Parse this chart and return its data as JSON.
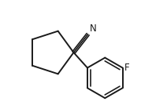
{
  "bg_color": "#ffffff",
  "line_color": "#1a1a1a",
  "line_width": 1.4,
  "font_size_label": 8.5,
  "N_label": "N",
  "F_label": "F",
  "figsize": [
    2.12,
    1.34
  ],
  "dpi": 100,
  "xlim": [
    0.0,
    1.0
  ],
  "ylim": [
    0.05,
    0.95
  ]
}
